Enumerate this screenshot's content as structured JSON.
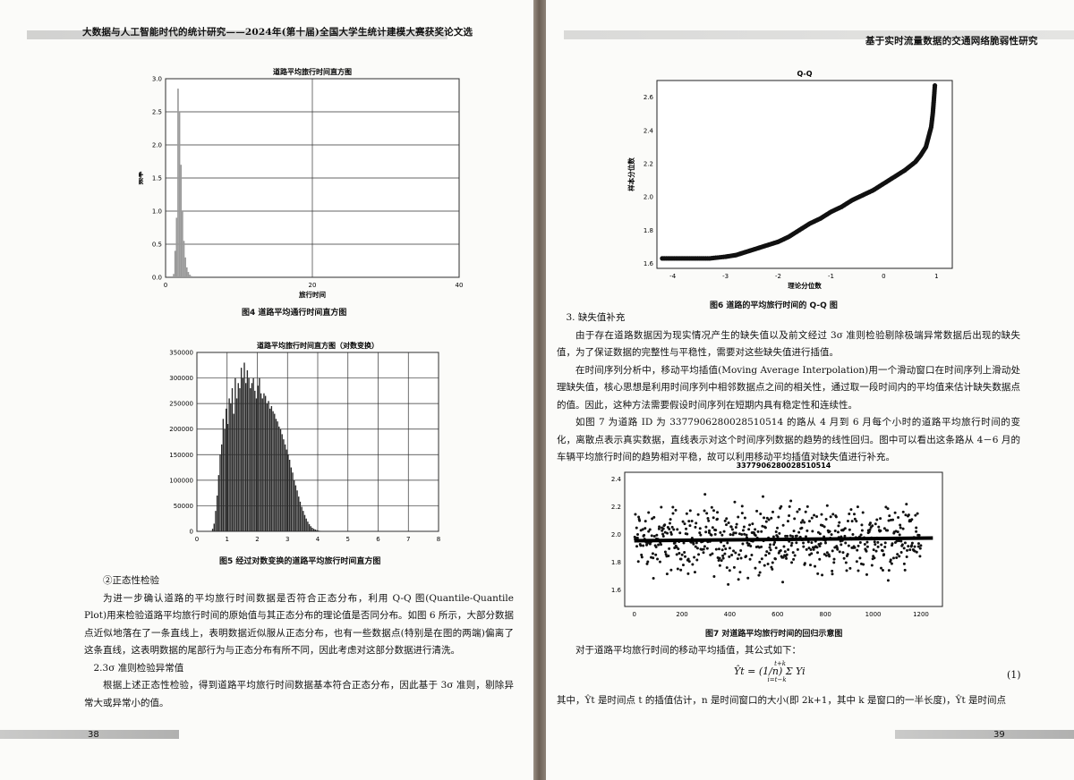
{
  "left": {
    "running_head": "大数据与人工智能时代的统计研究——2024年(第十届)全国大学生统计建模大赛获奖论文选",
    "fig4": {
      "caption": "图4  道路平均通行时间直方图",
      "chart_data": {
        "type": "bar",
        "title": "道路平均旅行时间直方图",
        "xlabel": "旅行时间",
        "ylabel": "频率",
        "xlim": [
          0,
          40
        ],
        "ylim": [
          0,
          3.0
        ],
        "xticks": [
          "0",
          "20",
          "40"
        ],
        "yticks": [
          "0.0",
          "0.5",
          "1.0",
          "1.5",
          "2.0",
          "2.5",
          "3.0"
        ],
        "x": [
          1.0,
          1.2,
          1.4,
          1.6,
          1.8,
          2.0,
          2.2,
          2.4,
          2.6,
          2.8,
          3.0,
          3.2,
          3.4
        ],
        "values": [
          0.05,
          0.4,
          0.9,
          2.85,
          2.5,
          1.7,
          1.0,
          0.55,
          0.3,
          0.15,
          0.08,
          0.04,
          0.02
        ]
      }
    },
    "fig5": {
      "caption": "图5  经过对数变换的道路平均旅行时间直方图",
      "chart_data": {
        "type": "bar",
        "title": "道路平均旅行时间直方图（对数变换）",
        "xlim": [
          0,
          8
        ],
        "ylim": [
          0,
          350000
        ],
        "xticks": [
          "0",
          "1",
          "2",
          "3",
          "4",
          "5",
          "6",
          "7",
          "8"
        ],
        "yticks": [
          "0",
          "50000",
          "100000",
          "150000",
          "200000",
          "250000",
          "300000",
          "350000"
        ],
        "bin_start": 0.5,
        "bin_width": 0.05,
        "values": [
          5000,
          15000,
          40000,
          70000,
          110000,
          150000,
          170000,
          220000,
          200000,
          240000,
          210000,
          260000,
          250000,
          280000,
          230000,
          300000,
          260000,
          290000,
          280000,
          320000,
          300000,
          330000,
          290000,
          315000,
          300000,
          280000,
          290000,
          300000,
          275000,
          260000,
          285000,
          300000,
          270000,
          260000,
          270000,
          265000,
          250000,
          255000,
          240000,
          245000,
          235000,
          230000,
          220000,
          215000,
          205000,
          200000,
          190000,
          180000,
          170000,
          160000,
          150000,
          140000,
          125000,
          115000,
          100000,
          90000,
          80000,
          68000,
          58000,
          48000,
          40000,
          32000,
          25000,
          19000,
          14000,
          10000,
          7000,
          5000,
          3500,
          2500,
          1500,
          1000,
          600,
          300
        ]
      }
    },
    "paragraphs": [
      "②正态性检验",
      "为进一步确认道路的平均旅行时间数据是否符合正态分布，利用 Q-Q 图(Quantile-Quantile Plot)用来检验道路平均旅行时间的原始值与其正态分布的理论值是否同分布。如图 6 所示，大部分数据点近似地落在了一条直线上，表明数据近似服从正态分布，也有一些数据点(特别是在图的两端)偏离了这条直线，这表明数据的尾部行为与正态分布有所不同，因此考虑对这部分数据进行清洗。",
      "2.3σ 准则检验异常值",
      "根据上述正态性检验，得到道路平均旅行时间数据基本符合正态分布，因此基于 3σ 准则，剔除异常大或异常小的值。"
    ],
    "page_number": "38"
  },
  "right": {
    "running_head": "基于实时流量数据的交通网络脆弱性研究",
    "fig6": {
      "caption": "图6  道路的平均旅行时间的 Q-Q 图",
      "chart_data": {
        "type": "scatter",
        "title": "Q-Q",
        "xlabel": "理论分位数",
        "ylabel": "样本分位数",
        "xlim": [
          -4.3,
          1.3
        ],
        "ylim": [
          1.57,
          2.7
        ],
        "xticks": [
          "-4",
          "-3",
          "-2",
          "-1",
          "0",
          "1"
        ],
        "yticks": [
          "1.6",
          "1.8",
          "2.0",
          "2.2",
          "2.4",
          "2.6"
        ],
        "x": [
          -4.2,
          -3.9,
          -3.6,
          -3.3,
          -3.0,
          -2.8,
          -2.6,
          -2.4,
          -2.2,
          -2.0,
          -1.8,
          -1.6,
          -1.4,
          -1.2,
          -1.0,
          -0.8,
          -0.6,
          -0.4,
          -0.2,
          0.0,
          0.2,
          0.4,
          0.6,
          0.7,
          0.8,
          0.85,
          0.9,
          0.93,
          0.95,
          0.97
        ],
        "y": [
          1.63,
          1.63,
          1.63,
          1.63,
          1.64,
          1.65,
          1.67,
          1.69,
          1.71,
          1.73,
          1.76,
          1.8,
          1.84,
          1.87,
          1.91,
          1.94,
          1.98,
          2.01,
          2.04,
          2.08,
          2.12,
          2.16,
          2.21,
          2.25,
          2.3,
          2.36,
          2.42,
          2.5,
          2.58,
          2.67
        ]
      }
    },
    "section_heading": "3. 缺失值补充",
    "paragraphs": [
      "由于存在道路数据因为现实情况产生的缺失值以及前文经过 3σ 准则检验剔除极端异常数据后出现的缺失值，为了保证数据的完整性与平稳性，需要对这些缺失值进行插值。",
      "在时间序列分析中，移动平均插值(Moving Average Interpolation)用一个滑动窗口在时间序列上滑动处理缺失值，核心思想是利用时间序列中相邻数据点之间的相关性，通过取一段时间内的平均值来估计缺失数据点的值。因此，这种方法需要假设时间序列在短期内具有稳定性和连续性。",
      "如图 7 为道路 ID 为 3377906280028510514 的路从 4 月到 6 月每个小时的道路平均旅行时间的变化，离散点表示真实数据，直线表示对这个时间序列数据的趋势的线性回归。图中可以看出这条路从 4－6 月的车辆平均旅行时间的趋势相对平稳，故可以利用移动平均插值对缺失值进行补充。"
    ],
    "fig7": {
      "caption": "图7  对道路平均旅行时间的回归示意图",
      "chart_data": {
        "type": "scatter",
        "title": "3377906280028510514",
        "xlim": [
          -40,
          1290
        ],
        "ylim": [
          1.48,
          2.45
        ],
        "xticks": [
          "0",
          "200",
          "400",
          "600",
          "800",
          "1000",
          "1200"
        ],
        "yticks": [
          "1.6",
          "1.8",
          "2.0",
          "2.2",
          "2.4"
        ],
        "n_points": 1200,
        "center": 1.96,
        "spread": 0.12,
        "regression": {
          "x": [
            0,
            1250
          ],
          "y": [
            1.955,
            1.975
          ]
        }
      }
    },
    "formula_intro": "对于道路平均旅行时间的移动平均插值，其公式如下：",
    "formula": "Ŷt = (1/n) Σ Yi",
    "formula_sum": "t+k",
    "formula_sum_lower": "i=t−k",
    "formula_number": "(1)",
    "last_line": "其中，Ŷt 是时间点 t 的插值估计，n 是时间窗口的大小(即 2k+1，其中 k 是窗口的一半长度)，Ŷt 是时间点",
    "page_number": "39"
  }
}
